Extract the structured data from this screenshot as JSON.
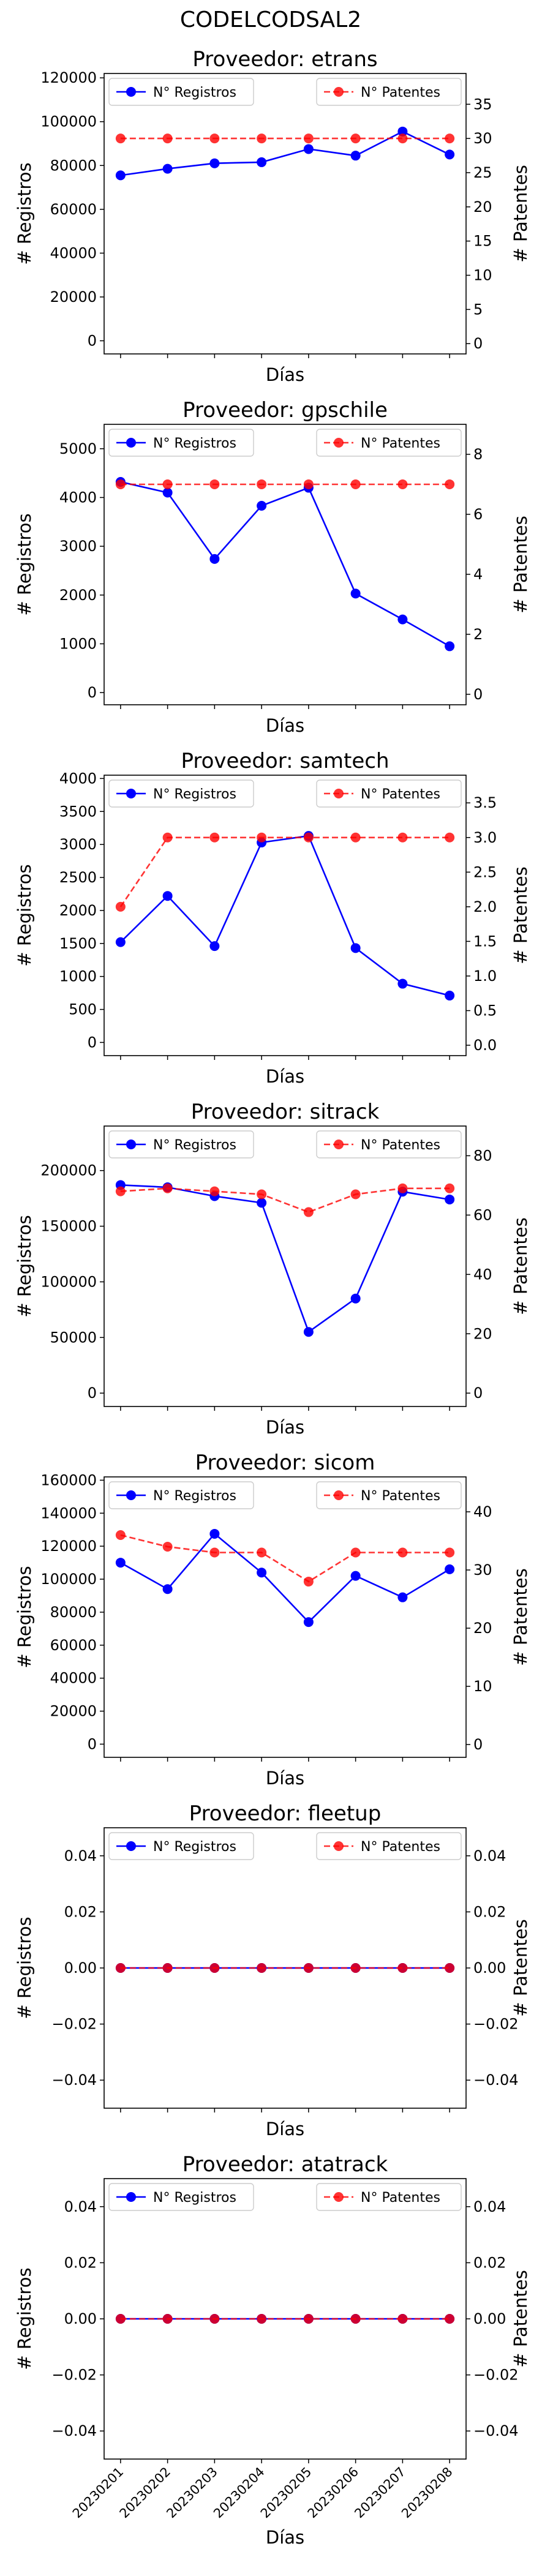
{
  "figure": {
    "title": "CODELCODSAL2"
  },
  "chart_data": [
    {
      "type": "line",
      "title": "Proveedor: etrans",
      "xlabel": "Días",
      "ylabel_left": "# Registros",
      "ylabel_right": "# Patentes",
      "categories": [
        "20230201",
        "20230202",
        "20230203",
        "20230204",
        "20230205",
        "20230206",
        "20230207",
        "20230208"
      ],
      "ylim_left": [
        -6000,
        122000
      ],
      "yticks_left": [
        0,
        20000,
        40000,
        60000,
        80000,
        100000,
        120000
      ],
      "ylim_right": [
        -1.5,
        39.5
      ],
      "yticks_right": [
        0,
        5,
        10,
        15,
        20,
        25,
        30,
        35
      ],
      "series": [
        {
          "name": "N° Registros",
          "axis": "left",
          "color": "#0000ff",
          "style": "solid",
          "values": [
            75500,
            78500,
            81000,
            81500,
            87500,
            84500,
            95500,
            85000
          ]
        },
        {
          "name": "N° Patentes",
          "axis": "right",
          "color": "#ff0000",
          "style": "dashed",
          "values": [
            30,
            30,
            30,
            30,
            30,
            30,
            30,
            30
          ]
        }
      ],
      "legend": [
        "top-left",
        "top-right"
      ],
      "show_xticklabels": false
    },
    {
      "type": "line",
      "title": "Proveedor: gpschile",
      "xlabel": "Días",
      "ylabel_left": "# Registros",
      "ylabel_right": "# Patentes",
      "categories": [
        "20230201",
        "20230202",
        "20230203",
        "20230204",
        "20230205",
        "20230206",
        "20230207",
        "20230208"
      ],
      "ylim_left": [
        -250,
        5500
      ],
      "yticks_left": [
        0,
        1000,
        2000,
        3000,
        4000,
        5000
      ],
      "ylim_right": [
        -0.35,
        9
      ],
      "yticks_right": [
        0,
        2,
        4,
        6,
        8
      ],
      "series": [
        {
          "name": "N° Registros",
          "axis": "left",
          "color": "#0000ff",
          "style": "solid",
          "values": [
            4320,
            4100,
            2740,
            3830,
            4200,
            2030,
            1500,
            950
          ]
        },
        {
          "name": "N° Patentes",
          "axis": "right",
          "color": "#ff0000",
          "style": "dashed",
          "values": [
            7,
            7,
            7,
            7,
            7,
            7,
            7,
            7
          ]
        }
      ],
      "legend": [
        "top-left",
        "top-right"
      ],
      "show_xticklabels": false
    },
    {
      "type": "line",
      "title": "Proveedor: samtech",
      "xlabel": "Días",
      "ylabel_left": "# Registros",
      "ylabel_right": "# Patentes",
      "categories": [
        "20230201",
        "20230202",
        "20230203",
        "20230204",
        "20230205",
        "20230206",
        "20230207",
        "20230208"
      ],
      "ylim_left": [
        -200,
        4050
      ],
      "yticks_left": [
        0,
        500,
        1000,
        1500,
        2000,
        2500,
        3000,
        3500,
        4000
      ],
      "ylim_right": [
        -0.15,
        3.9
      ],
      "yticks_right": [
        0.0,
        0.5,
        1.0,
        1.5,
        2.0,
        2.5,
        3.0,
        3.5
      ],
      "series": [
        {
          "name": "N° Registros",
          "axis": "left",
          "color": "#0000ff",
          "style": "solid",
          "values": [
            1520,
            2220,
            1460,
            3030,
            3130,
            1430,
            890,
            710
          ]
        },
        {
          "name": "N° Patentes",
          "axis": "right",
          "color": "#ff0000",
          "style": "dashed",
          "values": [
            2,
            3,
            3,
            3,
            3,
            3,
            3,
            3
          ]
        }
      ],
      "legend": [
        "top-left",
        "top-right"
      ],
      "show_xticklabels": false
    },
    {
      "type": "line",
      "title": "Proveedor: sitrack",
      "xlabel": "Días",
      "ylabel_left": "# Registros",
      "ylabel_right": "# Patentes",
      "categories": [
        "20230201",
        "20230202",
        "20230203",
        "20230204",
        "20230205",
        "20230206",
        "20230207",
        "20230208"
      ],
      "ylim_left": [
        -12000,
        240000
      ],
      "yticks_left": [
        0,
        50000,
        100000,
        150000,
        200000
      ],
      "ylim_right": [
        -4.5,
        90
      ],
      "yticks_right": [
        0,
        20,
        40,
        60,
        80
      ],
      "series": [
        {
          "name": "N° Registros",
          "axis": "left",
          "color": "#0000ff",
          "style": "solid",
          "values": [
            187000,
            185000,
            177000,
            171000,
            55000,
            85000,
            181000,
            174000
          ]
        },
        {
          "name": "N° Patentes",
          "axis": "right",
          "color": "#ff0000",
          "style": "dashed",
          "values": [
            68,
            69,
            68,
            67,
            61,
            67,
            69,
            69
          ]
        }
      ],
      "legend": [
        "top-left",
        "top-right"
      ],
      "show_xticklabels": false
    },
    {
      "type": "line",
      "title": "Proveedor: sicom",
      "xlabel": "Días",
      "ylabel_left": "# Registros",
      "ylabel_right": "# Patentes",
      "categories": [
        "20230201",
        "20230202",
        "20230203",
        "20230204",
        "20230205",
        "20230206",
        "20230207",
        "20230208"
      ],
      "ylim_left": [
        -8000,
        162000
      ],
      "yticks_left": [
        0,
        20000,
        40000,
        60000,
        80000,
        100000,
        120000,
        140000,
        160000
      ],
      "ylim_right": [
        -2.2,
        46
      ],
      "yticks_right": [
        0,
        10,
        20,
        30,
        40
      ],
      "series": [
        {
          "name": "N° Registros",
          "axis": "left",
          "color": "#0000ff",
          "style": "solid",
          "values": [
            110000,
            94000,
            127500,
            104000,
            74000,
            102000,
            89000,
            106000
          ]
        },
        {
          "name": "N° Patentes",
          "axis": "right",
          "color": "#ff0000",
          "style": "dashed",
          "values": [
            36,
            34,
            33,
            33,
            28,
            33,
            33,
            33
          ]
        }
      ],
      "legend": [
        "top-left",
        "top-right"
      ],
      "show_xticklabels": false
    },
    {
      "type": "line",
      "title": "Proveedor: fleetup",
      "xlabel": "Días",
      "ylabel_left": "# Registros",
      "ylabel_right": "# Patentes",
      "categories": [
        "20230201",
        "20230202",
        "20230203",
        "20230204",
        "20230205",
        "20230206",
        "20230207",
        "20230208"
      ],
      "ylim_left": [
        -0.05,
        0.05
      ],
      "yticks_left": [
        -0.04,
        -0.02,
        0.0,
        0.02,
        0.04
      ],
      "ylim_right": [
        -0.05,
        0.05
      ],
      "yticks_right": [
        -0.04,
        -0.02,
        0.0,
        0.02,
        0.04
      ],
      "series": [
        {
          "name": "N° Registros",
          "axis": "left",
          "color": "#0000ff",
          "style": "solid",
          "values": [
            0,
            0,
            0,
            0,
            0,
            0,
            0,
            0
          ]
        },
        {
          "name": "N° Patentes",
          "axis": "right",
          "color": "#ff0000",
          "style": "dashed",
          "values": [
            0,
            0,
            0,
            0,
            0,
            0,
            0,
            0
          ]
        }
      ],
      "legend": [
        "top-left",
        "top-right"
      ],
      "show_xticklabels": false
    },
    {
      "type": "line",
      "title": "Proveedor: atatrack",
      "xlabel": "Días",
      "ylabel_left": "# Registros",
      "ylabel_right": "# Patentes",
      "categories": [
        "20230201",
        "20230202",
        "20230203",
        "20230204",
        "20230205",
        "20230206",
        "20230207",
        "20230208"
      ],
      "ylim_left": [
        -0.05,
        0.05
      ],
      "yticks_left": [
        -0.04,
        -0.02,
        0.0,
        0.02,
        0.04
      ],
      "ylim_right": [
        -0.05,
        0.05
      ],
      "yticks_right": [
        -0.04,
        -0.02,
        0.0,
        0.02,
        0.04
      ],
      "series": [
        {
          "name": "N° Registros",
          "axis": "left",
          "color": "#0000ff",
          "style": "solid",
          "values": [
            0,
            0,
            0,
            0,
            0,
            0,
            0,
            0
          ]
        },
        {
          "name": "N° Patentes",
          "axis": "right",
          "color": "#ff0000",
          "style": "dashed",
          "values": [
            0,
            0,
            0,
            0,
            0,
            0,
            0,
            0
          ]
        }
      ],
      "legend": [
        "top-left",
        "top-right"
      ],
      "show_xticklabels": true
    }
  ]
}
